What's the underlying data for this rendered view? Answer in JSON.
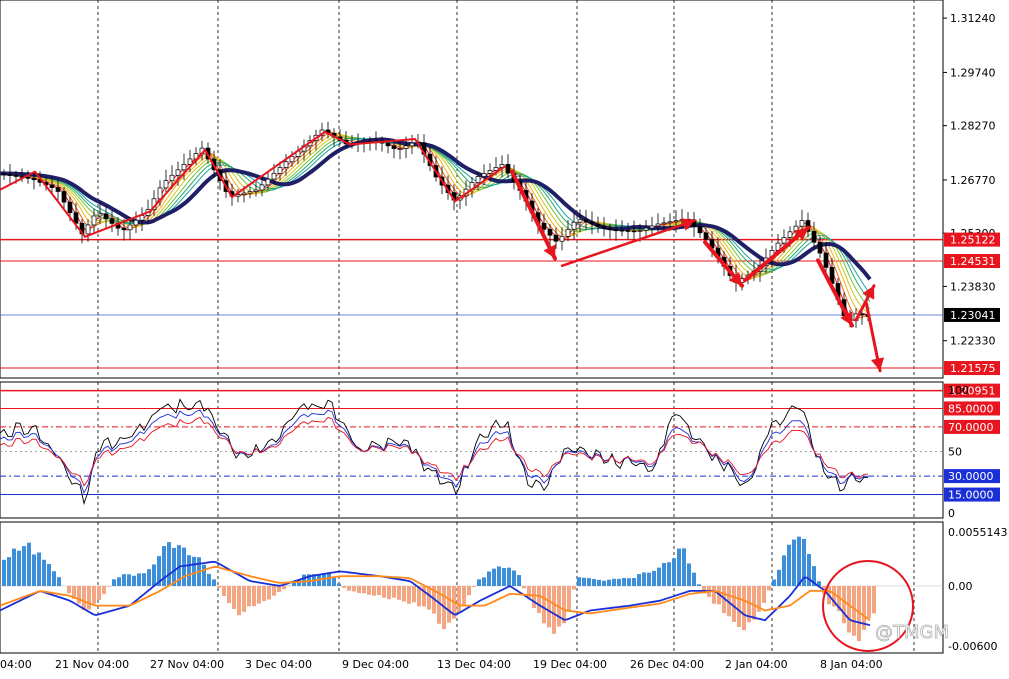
{
  "chart_data": [
    {
      "type": "candlestick",
      "panel": "price",
      "y_ticks": [
        "1.31240",
        "1.29740",
        "1.28270",
        "1.26770",
        "1.25300",
        "1.23830",
        "1.22330"
      ],
      "ylim": [
        1.213,
        1.3174
      ],
      "horizontal_levels": [
        {
          "label": "1.25122",
          "value": 1.25122,
          "color": "#e8141e"
        },
        {
          "label": "1.24531",
          "value": 1.24531,
          "color": "#e8141e"
        },
        {
          "label": "1.23041",
          "value": 1.23041,
          "color": "#3b5bd6",
          "current": true
        },
        {
          "label": "1.21575",
          "value": 1.21575,
          "color": "#e8141e"
        },
        {
          "label": "1.20951",
          "value": 1.20951,
          "color": "#e8141e"
        }
      ],
      "anchors": [
        [
          0,
          1.2695
        ],
        [
          35,
          1.268
        ],
        [
          60,
          1.265
        ],
        [
          85,
          1.2528
        ],
        [
          100,
          1.259
        ],
        [
          125,
          1.2535
        ],
        [
          150,
          1.259
        ],
        [
          165,
          1.2665
        ],
        [
          205,
          1.2765
        ],
        [
          232,
          1.263
        ],
        [
          260,
          1.265
        ],
        [
          290,
          1.273
        ],
        [
          325,
          1.2815
        ],
        [
          350,
          1.2775
        ],
        [
          380,
          1.2785
        ],
        [
          400,
          1.276
        ],
        [
          420,
          1.2785
        ],
        [
          440,
          1.268
        ],
        [
          458,
          1.2618
        ],
        [
          480,
          1.2685
        ],
        [
          505,
          1.272
        ],
        [
          525,
          1.264
        ],
        [
          540,
          1.256
        ],
        [
          560,
          1.2505
        ],
        [
          580,
          1.257
        ],
        [
          610,
          1.254
        ],
        [
          640,
          1.2535
        ],
        [
          660,
          1.2555
        ],
        [
          690,
          1.257
        ],
        [
          710,
          1.251
        ],
        [
          738,
          1.2392
        ],
        [
          760,
          1.243
        ],
        [
          780,
          1.25
        ],
        [
          805,
          1.2565
        ],
        [
          825,
          1.2465
        ],
        [
          850,
          1.228
        ],
        [
          860,
          1.231
        ],
        [
          870,
          1.23
        ]
      ]
    },
    {
      "type": "line",
      "panel": "stochastic",
      "y_ticks": [
        "100",
        "50",
        "0"
      ],
      "ylim": [
        0,
        100
      ],
      "levels": [
        {
          "label": "85.0000",
          "value": 85,
          "color": "#e8141e"
        },
        {
          "label": "70.0000",
          "value": 70,
          "color": "#e8141e"
        },
        {
          "label": "30.0000",
          "value": 30,
          "color": "#1a2fd6"
        },
        {
          "label": "15.0000",
          "value": 15,
          "color": "#1a2fd6"
        }
      ],
      "series": [
        {
          "color": "#000000",
          "values": [
            [
              0,
              65
            ],
            [
              30,
              70
            ],
            [
              55,
              50
            ],
            [
              85,
              12
            ],
            [
              100,
              55
            ],
            [
              130,
              62
            ],
            [
              160,
              85
            ],
            [
              200,
              88
            ],
            [
              240,
              45
            ],
            [
              270,
              55
            ],
            [
              300,
              85
            ],
            [
              330,
              88
            ],
            [
              360,
              50
            ],
            [
              400,
              60
            ],
            [
              430,
              35
            ],
            [
              455,
              18
            ],
            [
              480,
              60
            ],
            [
              505,
              75
            ],
            [
              525,
              30
            ],
            [
              545,
              20
            ],
            [
              570,
              55
            ],
            [
              600,
              45
            ],
            [
              635,
              40
            ],
            [
              655,
              35
            ],
            [
              675,
              85
            ],
            [
              700,
              55
            ],
            [
              730,
              35
            ],
            [
              745,
              18
            ],
            [
              770,
              70
            ],
            [
              800,
              90
            ],
            [
              820,
              40
            ],
            [
              840,
              20
            ],
            [
              855,
              30
            ],
            [
              870,
              25
            ]
          ]
        },
        {
          "color": "#1a2fd6",
          "values": [
            [
              0,
              60
            ],
            [
              30,
              65
            ],
            [
              55,
              50
            ],
            [
              85,
              18
            ],
            [
              100,
              50
            ],
            [
              130,
              58
            ],
            [
              160,
              78
            ],
            [
              200,
              82
            ],
            [
              240,
              47
            ],
            [
              270,
              52
            ],
            [
              300,
              78
            ],
            [
              330,
              82
            ],
            [
              360,
              50
            ],
            [
              400,
              57
            ],
            [
              430,
              38
            ],
            [
              455,
              22
            ],
            [
              480,
              55
            ],
            [
              505,
              68
            ],
            [
              525,
              35
            ],
            [
              545,
              25
            ],
            [
              570,
              52
            ],
            [
              600,
              45
            ],
            [
              635,
              42
            ],
            [
              655,
              38
            ],
            [
              675,
              72
            ],
            [
              700,
              55
            ],
            [
              730,
              38
            ],
            [
              745,
              22
            ],
            [
              770,
              62
            ],
            [
              800,
              78
            ],
            [
              820,
              42
            ],
            [
              840,
              25
            ],
            [
              855,
              30
            ],
            [
              870,
              28
            ]
          ]
        },
        {
          "color": "#e8141e",
          "values": [
            [
              0,
              55
            ],
            [
              30,
              60
            ],
            [
              55,
              48
            ],
            [
              85,
              24
            ],
            [
              100,
              47
            ],
            [
              130,
              54
            ],
            [
              160,
              70
            ],
            [
              200,
              76
            ],
            [
              240,
              48
            ],
            [
              270,
              51
            ],
            [
              300,
              72
            ],
            [
              330,
              76
            ],
            [
              360,
              50
            ],
            [
              400,
              55
            ],
            [
              430,
              40
            ],
            [
              455,
              28
            ],
            [
              480,
              50
            ],
            [
              505,
              62
            ],
            [
              525,
              40
            ],
            [
              545,
              30
            ],
            [
              570,
              50
            ],
            [
              600,
              44
            ],
            [
              635,
              43
            ],
            [
              655,
              40
            ],
            [
              675,
              66
            ],
            [
              700,
              55
            ],
            [
              730,
              40
            ],
            [
              745,
              28
            ],
            [
              770,
              55
            ],
            [
              800,
              70
            ],
            [
              820,
              45
            ],
            [
              840,
              30
            ],
            [
              855,
              31
            ],
            [
              870,
              30
            ]
          ]
        }
      ]
    },
    {
      "type": "histogram",
      "panel": "macd",
      "y_ticks": [
        "0.0055143",
        "0.00",
        "-0.00600"
      ],
      "ylim": [
        -0.0060064,
        0.0055143
      ],
      "histogram_anchors": [
        [
          0,
          0.003
        ],
        [
          25,
          0.004
        ],
        [
          50,
          0.002
        ],
        [
          65,
          -0.0005
        ],
        [
          85,
          -0.0025
        ],
        [
          100,
          -0.001
        ],
        [
          115,
          0.001
        ],
        [
          140,
          0.0012
        ],
        [
          170,
          0.0045
        ],
        [
          200,
          0.0025
        ],
        [
          235,
          -0.003
        ],
        [
          255,
          -0.002
        ],
        [
          280,
          -0.0005
        ],
        [
          300,
          0.001
        ],
        [
          325,
          0.0015
        ],
        [
          345,
          -0.0005
        ],
        [
          380,
          -0.001
        ],
        [
          420,
          -0.002
        ],
        [
          440,
          -0.004
        ],
        [
          460,
          -0.0025
        ],
        [
          475,
          0.0005
        ],
        [
          495,
          0.002
        ],
        [
          515,
          0.0015
        ],
        [
          525,
          -0.001
        ],
        [
          550,
          -0.0045
        ],
        [
          565,
          -0.0035
        ],
        [
          575,
          0.001
        ],
        [
          600,
          0.0005
        ],
        [
          635,
          0.001
        ],
        [
          660,
          0.002
        ],
        [
          680,
          0.004
        ],
        [
          700,
          -0.0005
        ],
        [
          720,
          -0.0025
        ],
        [
          740,
          -0.0045
        ],
        [
          755,
          -0.003
        ],
        [
          770,
          0.0002
        ],
        [
          790,
          0.005
        ],
        [
          805,
          0.004
        ],
        [
          822,
          -0.001
        ],
        [
          845,
          -0.004
        ],
        [
          858,
          -0.0052
        ],
        [
          872,
          -0.003
        ]
      ],
      "series": [
        {
          "color": "#1a2fd6",
          "values": [
            [
              0,
              -0.0025
            ],
            [
              40,
              -0.0005
            ],
            [
              70,
              -0.0015
            ],
            [
              95,
              -0.003
            ],
            [
              130,
              -0.002
            ],
            [
              160,
              0.0005
            ],
            [
              180,
              0.002
            ],
            [
              215,
              0.0025
            ],
            [
              250,
              0.0005
            ],
            [
              280,
              0.0
            ],
            [
              310,
              0.001
            ],
            [
              340,
              0.0015
            ],
            [
              380,
              0.001
            ],
            [
              410,
              0.0005
            ],
            [
              430,
              -0.001
            ],
            [
              455,
              -0.003
            ],
            [
              480,
              -0.0015
            ],
            [
              510,
              0.0
            ],
            [
              540,
              -0.002
            ],
            [
              565,
              -0.0035
            ],
            [
              590,
              -0.0025
            ],
            [
              630,
              -0.002
            ],
            [
              660,
              -0.0015
            ],
            [
              690,
              -0.0005
            ],
            [
              715,
              -0.0005
            ],
            [
              745,
              -0.003
            ],
            [
              765,
              -0.0035
            ],
            [
              790,
              -0.001
            ],
            [
              805,
              0.001
            ],
            [
              825,
              -0.0005
            ],
            [
              850,
              -0.0035
            ],
            [
              870,
              -0.004
            ]
          ]
        },
        {
          "color": "#ff8a1a",
          "values": [
            [
              0,
              -0.002
            ],
            [
              40,
              -0.0005
            ],
            [
              70,
              -0.001
            ],
            [
              95,
              -0.002
            ],
            [
              130,
              -0.002
            ],
            [
              160,
              -0.0005
            ],
            [
              185,
              0.001
            ],
            [
              215,
              0.002
            ],
            [
              250,
              0.001
            ],
            [
              280,
              0.0003
            ],
            [
              310,
              0.0005
            ],
            [
              340,
              0.001
            ],
            [
              380,
              0.001
            ],
            [
              410,
              0.0008
            ],
            [
              435,
              -0.0005
            ],
            [
              460,
              -0.002
            ],
            [
              485,
              -0.002
            ],
            [
              510,
              -0.0008
            ],
            [
              540,
              -0.001
            ],
            [
              565,
              -0.0025
            ],
            [
              590,
              -0.0028
            ],
            [
              630,
              -0.0022
            ],
            [
              660,
              -0.0018
            ],
            [
              690,
              -0.0008
            ],
            [
              715,
              -0.0005
            ],
            [
              745,
              -0.0015
            ],
            [
              765,
              -0.0025
            ],
            [
              790,
              -0.002
            ],
            [
              810,
              -0.0005
            ],
            [
              830,
              -0.0005
            ],
            [
              850,
              -0.002
            ],
            [
              870,
              -0.0035
            ]
          ]
        }
      ]
    }
  ],
  "x_labels": [
    "04:00",
    "21 Nov 04:00",
    "27 Nov 04:00",
    "3 Dec 04:00",
    "9 Dec 04:00",
    "13 Dec 04:00",
    "19 Dec 04:00",
    "26 Dec 04:00",
    "2 Jan 04:00",
    "8 Jan 04:00"
  ],
  "watermark": "@TMGM"
}
